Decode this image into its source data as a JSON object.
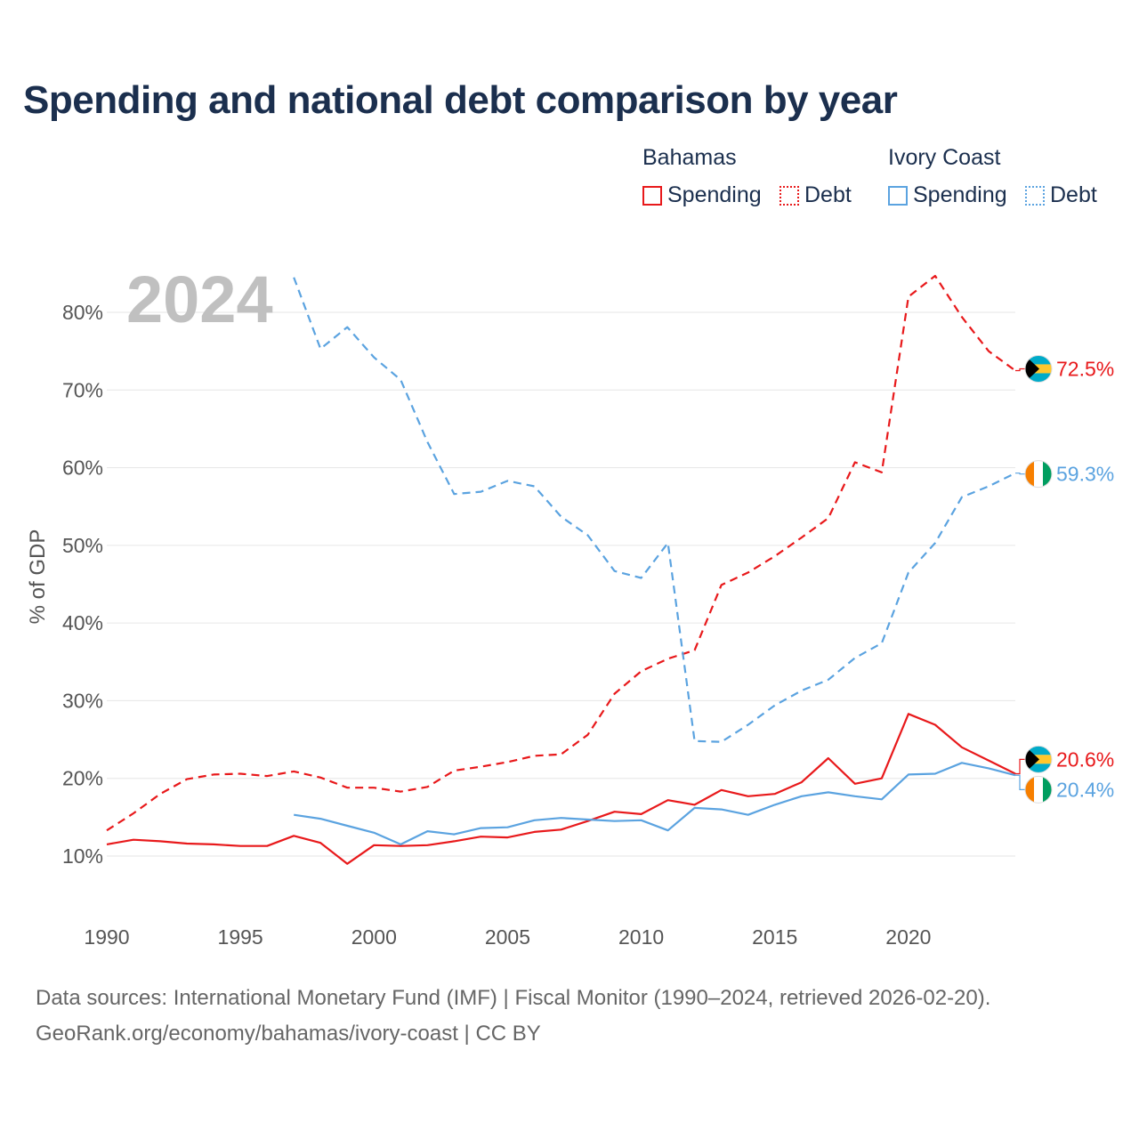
{
  "title": "Spending and national debt comparison by year",
  "year_watermark": "2024",
  "legend": {
    "bahamas": {
      "title": "Bahamas",
      "spending": "Spending",
      "debt": "Debt"
    },
    "ivory_coast": {
      "title": "Ivory Coast",
      "spending": "Spending",
      "debt": "Debt"
    }
  },
  "colors": {
    "bahamas": "#e8191b",
    "ivory_coast": "#5ba3e0"
  },
  "source_line": "Data sources: International Monetary Fund (IMF) | Fiscal Monitor (1990–2024, retrieved 2026-02-20).",
  "credit_line": "GeoRank.org/economy/bahamas/ivory-coast | CC BY",
  "chart_data": {
    "type": "line",
    "ylabel": "% of GDP",
    "xlabel": "",
    "xlim": [
      1990,
      2024
    ],
    "ylim": [
      5,
      88
    ],
    "x_ticks": [
      1990,
      1995,
      2000,
      2005,
      2010,
      2015,
      2020
    ],
    "y_ticks": [
      10,
      20,
      30,
      40,
      50,
      60,
      70,
      80
    ],
    "y_tick_labels": [
      "10%",
      "20%",
      "30%",
      "40%",
      "50%",
      "60%",
      "70%",
      "80%"
    ],
    "series": [
      {
        "name": "Bahamas Debt",
        "country": "bahamas",
        "style": "dashed",
        "end_label": "72.5%",
        "points": [
          [
            1990,
            13.3
          ],
          [
            1991,
            15.5
          ],
          [
            1992,
            18.0
          ],
          [
            1993,
            19.9
          ],
          [
            1994,
            20.5
          ],
          [
            1995,
            20.6
          ],
          [
            1996,
            20.3
          ],
          [
            1997,
            20.9
          ],
          [
            1998,
            20.1
          ],
          [
            1999,
            18.8
          ],
          [
            2000,
            18.8
          ],
          [
            2001,
            18.3
          ],
          [
            2002,
            18.9
          ],
          [
            2003,
            21.0
          ],
          [
            2004,
            21.5
          ],
          [
            2005,
            22.1
          ],
          [
            2006,
            22.9
          ],
          [
            2007,
            23.1
          ],
          [
            2008,
            25.6
          ],
          [
            2009,
            30.9
          ],
          [
            2010,
            33.8
          ],
          [
            2011,
            35.4
          ],
          [
            2012,
            36.5
          ],
          [
            2013,
            44.9
          ],
          [
            2014,
            46.5
          ],
          [
            2015,
            48.6
          ],
          [
            2016,
            51.0
          ],
          [
            2017,
            53.5
          ],
          [
            2018,
            60.7
          ],
          [
            2019,
            59.4
          ],
          [
            2020,
            82.0
          ],
          [
            2021,
            84.7
          ],
          [
            2022,
            79.4
          ],
          [
            2023,
            75.0
          ],
          [
            2024,
            72.5
          ]
        ]
      },
      {
        "name": "Ivory Coast Debt",
        "country": "ivory_coast",
        "style": "dashed",
        "end_label": "59.3%",
        "points": [
          [
            1997,
            84.5
          ],
          [
            1998,
            75.3
          ],
          [
            1999,
            78.1
          ],
          [
            2000,
            74.2
          ],
          [
            2001,
            71.3
          ],
          [
            2002,
            63.3
          ],
          [
            2003,
            56.6
          ],
          [
            2004,
            56.9
          ],
          [
            2005,
            58.3
          ],
          [
            2006,
            57.6
          ],
          [
            2007,
            53.7
          ],
          [
            2008,
            51.3
          ],
          [
            2009,
            46.7
          ],
          [
            2010,
            45.8
          ],
          [
            2011,
            50.3
          ],
          [
            2012,
            24.8
          ],
          [
            2013,
            24.7
          ],
          [
            2014,
            26.9
          ],
          [
            2015,
            29.4
          ],
          [
            2016,
            31.3
          ],
          [
            2017,
            32.7
          ],
          [
            2018,
            35.5
          ],
          [
            2019,
            37.4
          ],
          [
            2020,
            46.5
          ],
          [
            2021,
            50.3
          ],
          [
            2022,
            56.2
          ],
          [
            2023,
            57.6
          ],
          [
            2024,
            59.3
          ]
        ]
      },
      {
        "name": "Bahamas Spending",
        "country": "bahamas",
        "style": "solid",
        "end_label": "20.6%",
        "points": [
          [
            1990,
            11.5
          ],
          [
            1991,
            12.1
          ],
          [
            1992,
            11.9
          ],
          [
            1993,
            11.6
          ],
          [
            1994,
            11.5
          ],
          [
            1995,
            11.3
          ],
          [
            1996,
            11.3
          ],
          [
            1997,
            12.6
          ],
          [
            1998,
            11.7
          ],
          [
            1999,
            9.0
          ],
          [
            2000,
            11.4
          ],
          [
            2001,
            11.3
          ],
          [
            2002,
            11.4
          ],
          [
            2003,
            11.9
          ],
          [
            2004,
            12.5
          ],
          [
            2005,
            12.4
          ],
          [
            2006,
            13.1
          ],
          [
            2007,
            13.4
          ],
          [
            2008,
            14.5
          ],
          [
            2009,
            15.7
          ],
          [
            2010,
            15.4
          ],
          [
            2011,
            17.2
          ],
          [
            2012,
            16.6
          ],
          [
            2013,
            18.5
          ],
          [
            2014,
            17.7
          ],
          [
            2015,
            18.0
          ],
          [
            2016,
            19.5
          ],
          [
            2017,
            22.6
          ],
          [
            2018,
            19.3
          ],
          [
            2019,
            20.0
          ],
          [
            2020,
            28.3
          ],
          [
            2021,
            26.9
          ],
          [
            2022,
            24.0
          ],
          [
            2023,
            22.3
          ],
          [
            2024,
            20.6
          ]
        ]
      },
      {
        "name": "Ivory Coast Spending",
        "country": "ivory_coast",
        "style": "solid",
        "end_label": "20.4%",
        "points": [
          [
            1997,
            15.3
          ],
          [
            1998,
            14.8
          ],
          [
            1999,
            13.9
          ],
          [
            2000,
            13.0
          ],
          [
            2001,
            11.5
          ],
          [
            2002,
            13.2
          ],
          [
            2003,
            12.8
          ],
          [
            2004,
            13.6
          ],
          [
            2005,
            13.7
          ],
          [
            2006,
            14.6
          ],
          [
            2007,
            14.9
          ],
          [
            2008,
            14.7
          ],
          [
            2009,
            14.5
          ],
          [
            2010,
            14.6
          ],
          [
            2011,
            13.3
          ],
          [
            2012,
            16.2
          ],
          [
            2013,
            16.0
          ],
          [
            2014,
            15.3
          ],
          [
            2015,
            16.6
          ],
          [
            2016,
            17.7
          ],
          [
            2017,
            18.2
          ],
          [
            2018,
            17.7
          ],
          [
            2019,
            17.3
          ],
          [
            2020,
            20.5
          ],
          [
            2021,
            20.6
          ],
          [
            2022,
            22.0
          ],
          [
            2023,
            21.3
          ],
          [
            2024,
            20.4
          ]
        ]
      }
    ]
  }
}
